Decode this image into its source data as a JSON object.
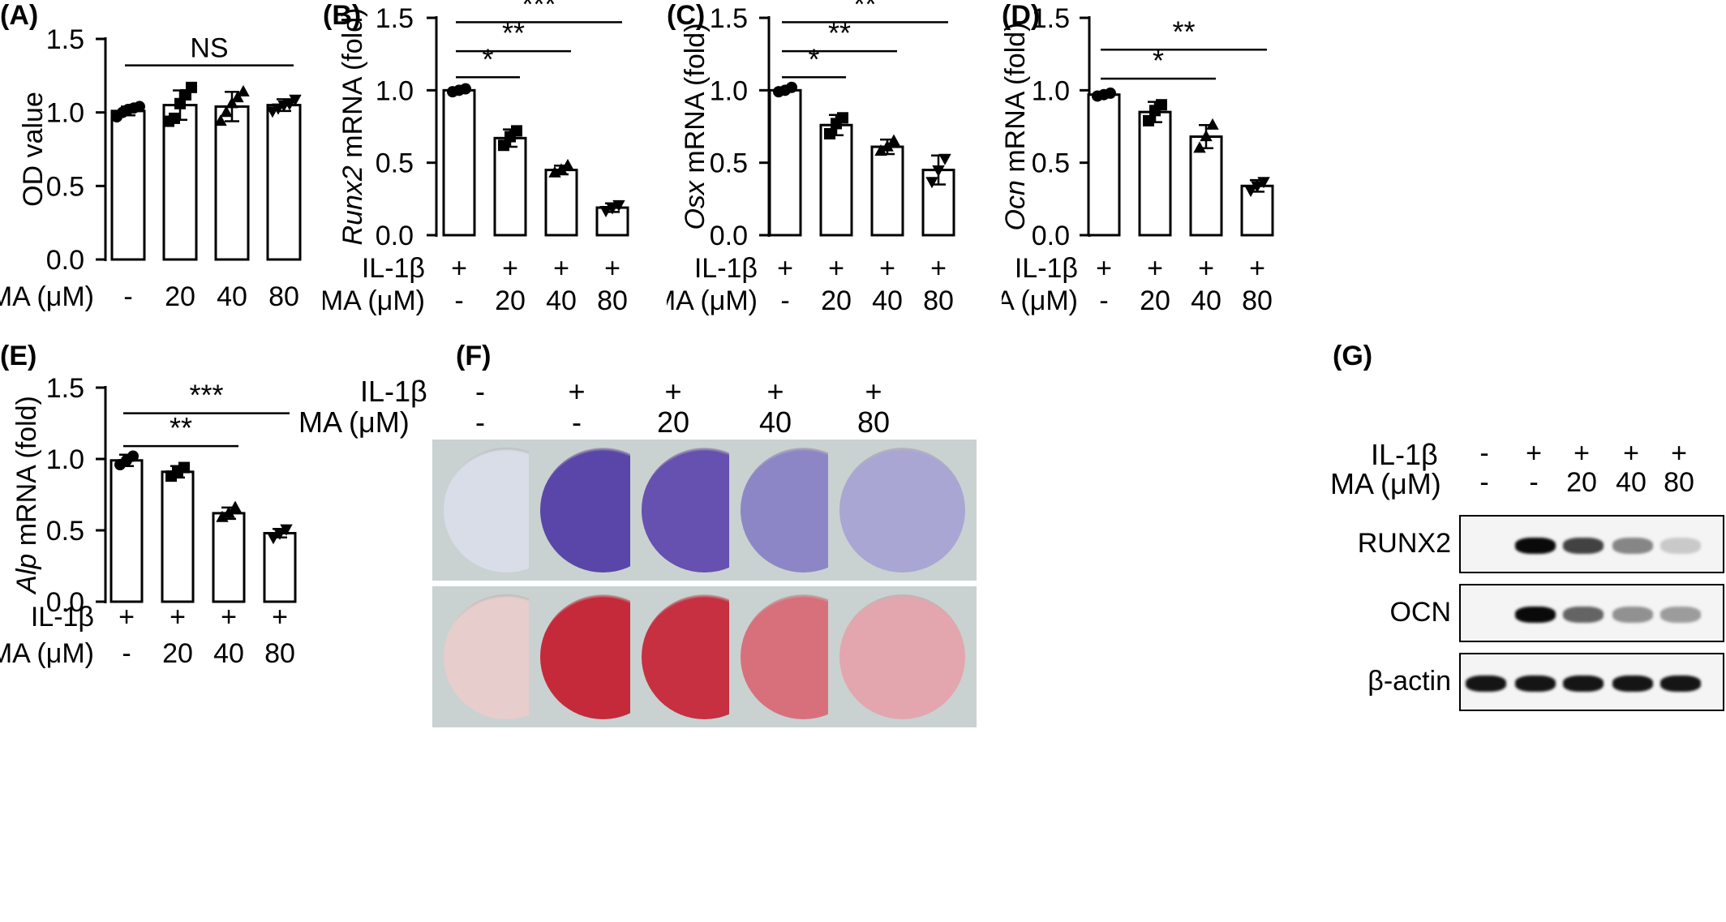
{
  "panels": {
    "A": "(A)",
    "B": "(B)",
    "C": "(C)",
    "D": "(D)",
    "E": "(E)",
    "F": "(F)",
    "G": "(G)"
  },
  "row_labels": {
    "il1b": "IL-1β",
    "ma": "MA (μM)"
  },
  "conditions": {
    "il1b": [
      "+",
      "+",
      "+",
      "+"
    ],
    "ma": [
      "-",
      "20",
      "40",
      "80"
    ]
  },
  "chart_data": [
    {
      "id": "A",
      "type": "bar",
      "ylabel": "OD value",
      "ylabel_italic": "",
      "ylim": [
        0,
        1.5
      ],
      "yticks": [
        "0.0",
        "0.5",
        "1.0",
        "1.5"
      ],
      "show_il1b_row": false,
      "ma_row": [
        "-",
        "20",
        "40",
        "80"
      ],
      "values": [
        1.01,
        1.05,
        1.04,
        1.05
      ],
      "errors": [
        0.03,
        0.1,
        0.1,
        0.04
      ],
      "markers": [
        "circle",
        "square",
        "triangle",
        "invtriangle"
      ],
      "points": [
        [
          0.97,
          1.0,
          1.02,
          1.03,
          1.04
        ],
        [
          0.94,
          0.96,
          1.06,
          1.12,
          1.17
        ],
        [
          0.94,
          1.0,
          1.06,
          1.1,
          1.14
        ],
        [
          1.01,
          1.03,
          1.05,
          1.06,
          1.09
        ]
      ],
      "significance": [
        {
          "from": 0,
          "to": 3,
          "y": 1.32,
          "label": "NS"
        }
      ]
    },
    {
      "id": "B",
      "type": "bar",
      "ylabel": " mRNA (fold)",
      "ylabel_italic": "Runx2",
      "ylim": [
        0,
        1.5
      ],
      "yticks": [
        "0.0",
        "0.5",
        "1.0",
        "1.5"
      ],
      "show_il1b_row": true,
      "ma_row": [
        "-",
        "20",
        "40",
        "80"
      ],
      "values": [
        1.0,
        0.67,
        0.45,
        0.19
      ],
      "errors": [
        0.01,
        0.06,
        0.03,
        0.03
      ],
      "markers": [
        "circle",
        "square",
        "triangle",
        "invtriangle"
      ],
      "points": [
        [
          0.99,
          1.0,
          1.01
        ],
        [
          0.62,
          0.68,
          0.72
        ],
        [
          0.43,
          0.45,
          0.48
        ],
        [
          0.17,
          0.19,
          0.21
        ]
      ],
      "significance": [
        {
          "from": 0,
          "to": 1,
          "y": 1.09,
          "label": "*"
        },
        {
          "from": 0,
          "to": 2,
          "y": 1.27,
          "label": "**"
        },
        {
          "from": 0,
          "to": 3,
          "y": 1.47,
          "label": "***"
        }
      ]
    },
    {
      "id": "C",
      "type": "bar",
      "ylabel": " mRNA (fold)",
      "ylabel_italic": "Osx",
      "ylim": [
        0,
        1.5
      ],
      "yticks": [
        "0.0",
        "0.5",
        "1.0",
        "1.5"
      ],
      "show_il1b_row": true,
      "ma_row": [
        "-",
        "20",
        "40",
        "80"
      ],
      "values": [
        1.0,
        0.76,
        0.61,
        0.45
      ],
      "errors": [
        0.01,
        0.07,
        0.05,
        0.1
      ],
      "markers": [
        "circle",
        "square",
        "triangle",
        "invtriangle"
      ],
      "points": [
        [
          0.99,
          1.0,
          1.02
        ],
        [
          0.7,
          0.77,
          0.81
        ],
        [
          0.58,
          0.61,
          0.65
        ],
        [
          0.37,
          0.45,
          0.53
        ]
      ],
      "significance": [
        {
          "from": 0,
          "to": 1,
          "y": 1.09,
          "label": "*"
        },
        {
          "from": 0,
          "to": 2,
          "y": 1.27,
          "label": "**"
        },
        {
          "from": 0,
          "to": 3,
          "y": 1.47,
          "label": "**"
        }
      ]
    },
    {
      "id": "D",
      "type": "bar",
      "ylabel": " mRNA (fold)",
      "ylabel_italic": "Ocn",
      "ylim": [
        0,
        1.5
      ],
      "yticks": [
        "0.0",
        "0.5",
        "1.0",
        "1.5"
      ],
      "show_il1b_row": true,
      "ma_row": [
        "-",
        "20",
        "40",
        "80"
      ],
      "values": [
        0.97,
        0.85,
        0.68,
        0.34
      ],
      "errors": [
        0.02,
        0.07,
        0.08,
        0.04
      ],
      "markers": [
        "circle",
        "square",
        "triangle",
        "invtriangle"
      ],
      "points": [
        [
          0.96,
          0.97,
          0.98
        ],
        [
          0.79,
          0.86,
          0.9
        ],
        [
          0.6,
          0.68,
          0.76
        ],
        [
          0.31,
          0.34,
          0.37
        ]
      ],
      "significance": [
        {
          "from": 0,
          "to": 2,
          "y": 1.08,
          "label": "*"
        },
        {
          "from": 0,
          "to": 3,
          "y": 1.28,
          "label": "**"
        }
      ]
    },
    {
      "id": "E",
      "type": "bar",
      "ylabel": " mRNA (fold)",
      "ylabel_italic": "Alp",
      "ylim": [
        0,
        1.5
      ],
      "yticks": [
        "0.0",
        "0.5",
        "1.0",
        "1.5"
      ],
      "show_il1b_row": true,
      "ma_row": [
        "-",
        "20",
        "40",
        "80"
      ],
      "values": [
        0.99,
        0.91,
        0.62,
        0.48
      ],
      "errors": [
        0.04,
        0.04,
        0.04,
        0.03
      ],
      "markers": [
        "circle",
        "square",
        "triangle",
        "invtriangle"
      ],
      "points": [
        [
          0.96,
          0.99,
          1.02
        ],
        [
          0.88,
          0.91,
          0.94
        ],
        [
          0.59,
          0.62,
          0.66
        ],
        [
          0.45,
          0.48,
          0.51
        ]
      ],
      "significance": [
        {
          "from": 0,
          "to": 2,
          "y": 1.09,
          "label": "**"
        },
        {
          "from": 0,
          "to": 3,
          "y": 1.32,
          "label": "***"
        }
      ]
    }
  ],
  "staining": {
    "il1b": [
      "-",
      "+",
      "+",
      "+",
      "+"
    ],
    "ma": [
      "-",
      "-",
      "20",
      "40",
      "80"
    ],
    "alp_colors": [
      "#d8dde8",
      "#5a46a8",
      "#6650b0",
      "#8d86c6",
      "#a9a6d4"
    ],
    "ars_colors": [
      "#e8cdcd",
      "#c42a3a",
      "#c63040",
      "#d8707c",
      "#e3a6ae"
    ]
  },
  "western": {
    "il1b": [
      "-",
      "+",
      "+",
      "+",
      "+"
    ],
    "ma": [
      "-",
      "-",
      "20",
      "40",
      "80"
    ],
    "rows": [
      {
        "label": "RUNX2",
        "intensities": [
          0.0,
          1.0,
          0.75,
          0.45,
          0.15
        ]
      },
      {
        "label": "OCN",
        "intensities": [
          0.0,
          1.0,
          0.6,
          0.4,
          0.35
        ]
      },
      {
        "label": "β-actin",
        "intensities": [
          0.95,
          0.95,
          0.95,
          0.95,
          0.95
        ]
      }
    ]
  }
}
